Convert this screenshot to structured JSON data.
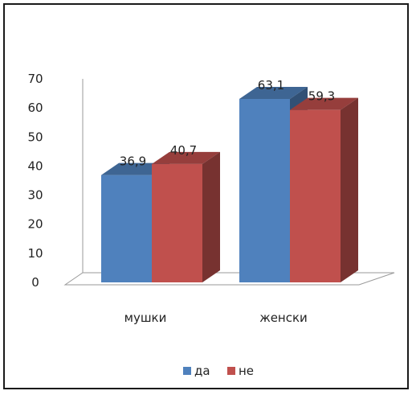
{
  "chart_data": {
    "type": "bar",
    "title": "",
    "xlabel": "",
    "ylabel": "",
    "ylim": [
      0,
      70
    ],
    "yticks": [
      0,
      10,
      20,
      30,
      40,
      50,
      60,
      70
    ],
    "categories": [
      "мушки",
      "женски"
    ],
    "series": [
      {
        "name": "да",
        "values": [
          36.9,
          63.1
        ],
        "labels": [
          "36,9",
          "63,1"
        ],
        "color": "#4f81bd"
      },
      {
        "name": "не",
        "values": [
          40.7,
          59.3
        ],
        "labels": [
          "40,7",
          "59,3"
        ],
        "color": "#c0504d"
      }
    ],
    "legend_position": "bottom",
    "grid": false,
    "style": "3d-clustered-column"
  }
}
